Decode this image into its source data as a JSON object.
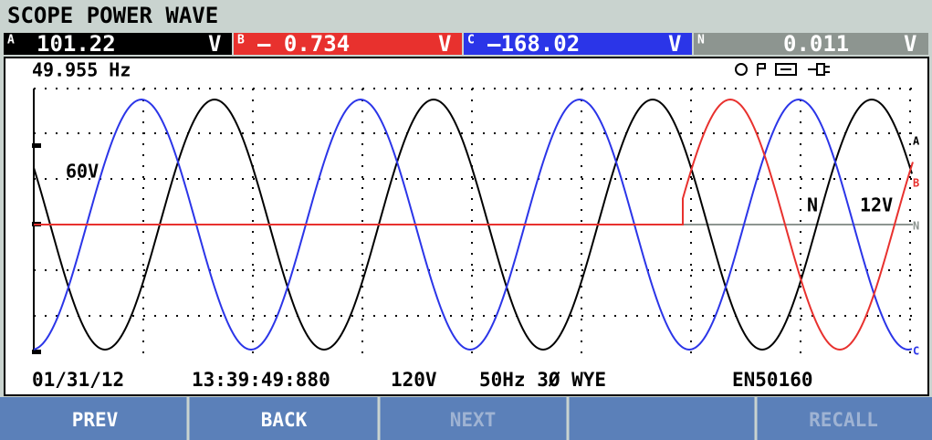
{
  "header": {
    "title": "SCOPE POWER WAVE"
  },
  "readings": [
    {
      "phase": "A",
      "value": "101.22",
      "unit": "V"
    },
    {
      "phase": "B",
      "value": "– 0.734",
      "unit": "V"
    },
    {
      "phase": "C",
      "value": "–168.02",
      "unit": "V"
    },
    {
      "phase": "N",
      "value": "0.011",
      "unit": "V"
    }
  ],
  "plot": {
    "frequency": "49.955 Hz",
    "scale_left": "60V",
    "scale_right_label": "N",
    "scale_right": "12V",
    "trace_labels": [
      "A",
      "B",
      "N",
      "C"
    ]
  },
  "status": {
    "date": "01/31/12",
    "time": "13:39:49:880",
    "nominal": "120V",
    "config": "50Hz 3Ø WYE",
    "standard": "EN50160"
  },
  "softkeys": [
    "PREV",
    "BACK",
    "NEXT",
    "RECALL"
  ]
}
